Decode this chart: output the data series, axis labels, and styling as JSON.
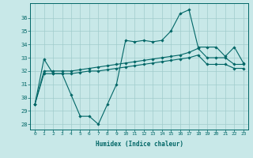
{
  "xlabel": "Humidex (Indice chaleur)",
  "bg_color": "#c8e8e8",
  "grid_color": "#a0cccc",
  "line_color": "#006666",
  "xlim": [
    -0.5,
    23.5
  ],
  "ylim": [
    27.6,
    37.1
  ],
  "xticks": [
    0,
    1,
    2,
    3,
    4,
    5,
    6,
    7,
    8,
    9,
    10,
    11,
    12,
    13,
    14,
    15,
    16,
    17,
    18,
    19,
    20,
    21,
    22,
    23
  ],
  "yticks": [
    28,
    29,
    30,
    31,
    32,
    33,
    34,
    35,
    36
  ],
  "x": [
    0,
    1,
    2,
    3,
    4,
    5,
    6,
    7,
    8,
    9,
    10,
    11,
    12,
    13,
    14,
    15,
    16,
    17,
    18,
    19,
    20,
    21,
    22,
    23
  ],
  "y_main": [
    29.5,
    32.9,
    31.8,
    31.8,
    30.2,
    28.6,
    28.6,
    28.0,
    29.5,
    31.0,
    34.3,
    34.2,
    34.3,
    34.2,
    34.3,
    35.0,
    36.3,
    36.6,
    33.8,
    33.8,
    33.8,
    33.1,
    33.8,
    32.6
  ],
  "y_upper": [
    29.5,
    32.0,
    32.0,
    32.0,
    32.0,
    32.1,
    32.2,
    32.3,
    32.4,
    32.5,
    32.6,
    32.7,
    32.8,
    32.9,
    33.0,
    33.1,
    33.2,
    33.4,
    33.7,
    33.0,
    33.0,
    33.0,
    32.5,
    32.5
  ],
  "y_lower": [
    29.5,
    31.8,
    31.8,
    31.8,
    31.8,
    31.9,
    32.0,
    32.0,
    32.1,
    32.2,
    32.3,
    32.4,
    32.5,
    32.6,
    32.7,
    32.8,
    32.9,
    33.0,
    33.2,
    32.5,
    32.5,
    32.5,
    32.2,
    32.2
  ]
}
